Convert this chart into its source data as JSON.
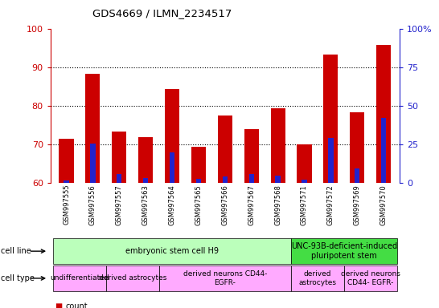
{
  "title": "GDS4669 / ILMN_2234517",
  "samples": [
    "GSM997555",
    "GSM997556",
    "GSM997557",
    "GSM997563",
    "GSM997564",
    "GSM997565",
    "GSM997566",
    "GSM997567",
    "GSM997568",
    "GSM997571",
    "GSM997572",
    "GSM997569",
    "GSM997570"
  ],
  "count_values": [
    71.5,
    88.5,
    73.5,
    72.0,
    84.5,
    69.5,
    77.5,
    74.0,
    79.5,
    70.0,
    93.5,
    78.5,
    96.0
  ],
  "percentile_values": [
    2.0,
    26.0,
    6.0,
    3.5,
    20.0,
    3.0,
    4.5,
    6.0,
    5.0,
    2.5,
    29.5,
    9.5,
    42.5
  ],
  "ylim_left": [
    60,
    100
  ],
  "ylim_right": [
    0,
    100
  ],
  "yticks_left": [
    60,
    70,
    80,
    90,
    100
  ],
  "yticks_right": [
    0,
    25,
    50,
    75,
    100
  ],
  "ytick_labels_right": [
    "0",
    "25",
    "50",
    "75",
    "100%"
  ],
  "bar_bottom": 60,
  "bar_color": "#cc0000",
  "pct_color": "#2222cc",
  "cell_line_groups": [
    {
      "label": "embryonic stem cell H9",
      "start": 0,
      "end": 9,
      "color": "#bbffbb"
    },
    {
      "label": "UNC-93B-deficient-induced\npluripotent stem",
      "start": 9,
      "end": 13,
      "color": "#44dd44"
    }
  ],
  "cell_type_groups": [
    {
      "label": "undifferentiated",
      "start": 0,
      "end": 2,
      "color": "#ffaaff"
    },
    {
      "label": "derived astrocytes",
      "start": 2,
      "end": 4,
      "color": "#ffaaff"
    },
    {
      "label": "derived neurons CD44-\nEGFR-",
      "start": 4,
      "end": 9,
      "color": "#ffaaff"
    },
    {
      "label": "derived\nastrocytes",
      "start": 9,
      "end": 11,
      "color": "#ffaaff"
    },
    {
      "label": "derived neurons\nCD44- EGFR-",
      "start": 11,
      "end": 13,
      "color": "#ffaaff"
    }
  ],
  "legend_count_color": "#cc0000",
  "legend_pct_color": "#2222cc",
  "tick_color_left": "#cc0000",
  "tick_color_right": "#2222cc",
  "plot_bg": "#ffffff",
  "fig_bg": "#ffffff"
}
